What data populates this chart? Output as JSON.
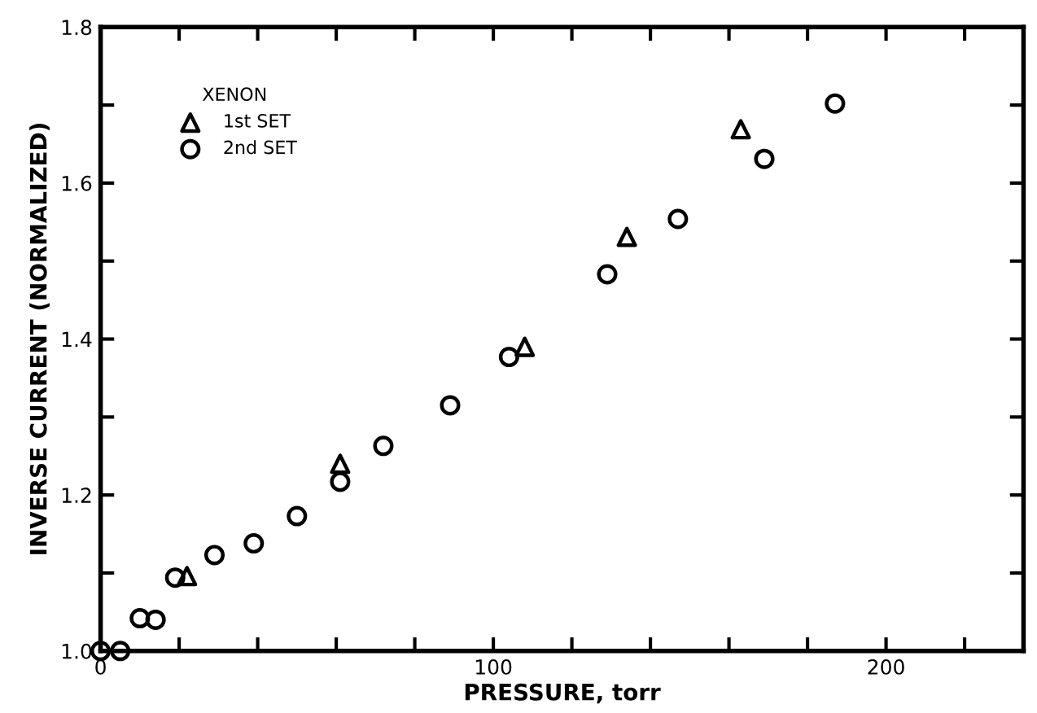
{
  "chart_data": {
    "type": "scatter",
    "xlabel": "PRESSURE, torr",
    "ylabel": "INVERSE CURRENT (NORMALIZED)",
    "legend_title": "XENON",
    "legend": "top left",
    "grid": false,
    "xlim": [
      0,
      235
    ],
    "ylim": [
      1.0,
      1.8
    ],
    "xticks": [
      0,
      {
        "value": 20,
        "label": null
      },
      {
        "value": 40,
        "label": null
      },
      {
        "value": 60,
        "label": null
      },
      {
        "value": 80,
        "label": null
      },
      100,
      {
        "value": 120,
        "label": null
      },
      {
        "value": 140,
        "label": null
      },
      {
        "value": 160,
        "label": null
      },
      {
        "value": 180,
        "label": null
      },
      200,
      {
        "value": 220,
        "label": null
      }
    ],
    "yticks": [
      {
        "value": 1.0,
        "label": "1.0"
      },
      {
        "value": 1.1,
        "label": null
      },
      1.2,
      {
        "value": 1.3,
        "label": null
      },
      1.4,
      {
        "value": 1.5,
        "label": null
      },
      1.6,
      {
        "value": 1.7,
        "label": null
      },
      1.8
    ],
    "series": [
      {
        "name": "1st SET",
        "color": "#000000",
        "marker": "triangle",
        "x": [
          22,
          61,
          108,
          134,
          163
        ],
        "values": [
          1.096,
          1.24,
          1.39,
          1.531,
          1.669
        ]
      },
      {
        "name": "2nd SET",
        "color": "#000000",
        "marker": "circle",
        "x": [
          0,
          5,
          10,
          14,
          19,
          29,
          39,
          50,
          61,
          72,
          89,
          104,
          129,
          147,
          169,
          187
        ],
        "values": [
          1.0,
          1.0,
          1.042,
          1.04,
          1.094,
          1.123,
          1.138,
          1.173,
          1.217,
          1.263,
          1.315,
          1.377,
          1.483,
          1.554,
          1.631,
          1.702
        ]
      }
    ]
  }
}
